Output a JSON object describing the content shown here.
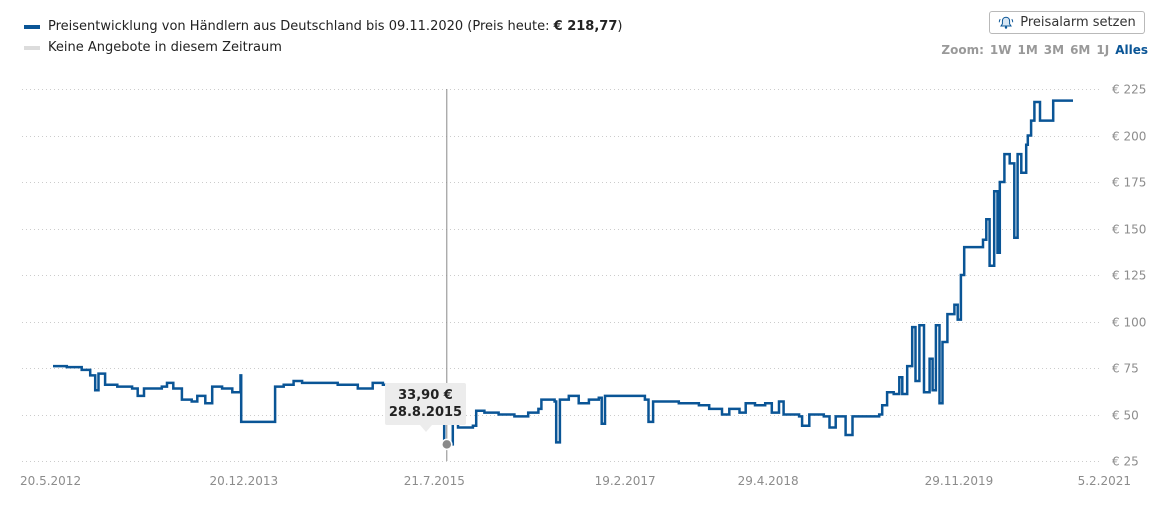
{
  "legend": {
    "series_prefix": "Preisentwicklung von Händlern aus Deutschland bis 09.11.2020 (Preis heute: ",
    "series_price": "€ 218,77",
    "series_suffix": ")",
    "no_offers": "Keine Angebote in diesem Zeitraum"
  },
  "alarm_button": {
    "label": "Preisalarm setzen",
    "icon": "bell-icon"
  },
  "zoom": {
    "label": "Zoom:",
    "options": [
      "1W",
      "1M",
      "3M",
      "6M",
      "1J",
      "Alles"
    ],
    "active": "Alles"
  },
  "tooltip": {
    "price": "33,90 €",
    "date": "28.8.2015"
  },
  "colors": {
    "series": "#0a5596",
    "grid": "#cccccc",
    "no_offer": "#dcdcdc",
    "crosshair": "#888888",
    "active_zoom": "#0a5596"
  },
  "chart_data": {
    "type": "line",
    "title": "",
    "xlabel": "",
    "ylabel": "",
    "y_ticks": [
      "€ 25",
      "€ 50",
      "€ 75",
      "€ 100",
      "€ 125",
      "€ 150",
      "€ 175",
      "€ 200",
      "€ 225"
    ],
    "y_tick_values": [
      25,
      50,
      75,
      100,
      125,
      150,
      175,
      200,
      225
    ],
    "x_ticks": [
      "20.5.2012",
      "20.12.2013",
      "21.7.2015",
      "19.2.2017",
      "29.4.2018",
      "29.11.2019",
      "5.2.2021"
    ],
    "x_tick_values": [
      "2012-05-20",
      "2013-12-20",
      "2015-07-21",
      "2017-02-19",
      "2018-04-29",
      "2019-11-29",
      "2021-02-05"
    ],
    "ylim": [
      25,
      225
    ],
    "grid": true,
    "legend_position": "top-left",
    "highlight": {
      "date": "2015-08-28",
      "value": 33.9
    },
    "series": [
      {
        "name": "Preisentwicklung von Händlern aus Deutschland bis 09.11.2020",
        "points": [
          [
            "2012-05-20",
            76
          ],
          [
            "2012-07-01",
            75.5
          ],
          [
            "2012-08-15",
            74
          ],
          [
            "2012-09-10",
            71
          ],
          [
            "2012-09-25",
            63
          ],
          [
            "2012-10-05",
            72
          ],
          [
            "2012-10-25",
            66
          ],
          [
            "2012-12-01",
            65
          ],
          [
            "2013-01-15",
            64
          ],
          [
            "2013-02-01",
            60
          ],
          [
            "2013-02-20",
            64
          ],
          [
            "2013-03-20",
            64
          ],
          [
            "2013-04-15",
            65
          ],
          [
            "2013-05-01",
            67
          ],
          [
            "2013-05-20",
            64
          ],
          [
            "2013-06-15",
            58
          ],
          [
            "2013-07-15",
            57
          ],
          [
            "2013-08-01",
            60
          ],
          [
            "2013-08-25",
            56
          ],
          [
            "2013-09-15",
            65
          ],
          [
            "2013-10-15",
            64
          ],
          [
            "2013-11-15",
            62
          ],
          [
            "2013-12-10",
            71
          ],
          [
            "2013-12-12",
            46
          ],
          [
            "2014-02-01",
            46
          ],
          [
            "2014-03-20",
            46
          ],
          [
            "2014-03-25",
            65
          ],
          [
            "2014-04-20",
            66
          ],
          [
            "2014-05-20",
            68
          ],
          [
            "2014-06-15",
            67
          ],
          [
            "2014-08-01",
            67
          ],
          [
            "2014-10-01",
            66
          ],
          [
            "2014-12-01",
            64
          ],
          [
            "2015-01-15",
            67
          ],
          [
            "2015-02-15",
            66
          ],
          [
            "2015-03-15",
            62
          ],
          [
            "2015-03-20",
            57
          ],
          [
            "2015-04-10",
            63
          ],
          [
            "2015-05-20",
            63
          ],
          [
            "2015-06-15",
            54
          ],
          [
            "2015-07-10",
            51
          ],
          [
            "2015-08-20",
            36
          ],
          [
            "2015-08-28",
            33.9
          ],
          [
            "2015-09-15",
            50
          ],
          [
            "2015-10-01",
            43
          ],
          [
            "2015-11-15",
            44
          ],
          [
            "2015-11-25",
            52
          ],
          [
            "2015-12-20",
            51
          ],
          [
            "2016-02-01",
            50
          ],
          [
            "2016-03-20",
            49
          ],
          [
            "2016-05-01",
            51
          ],
          [
            "2016-06-01",
            53
          ],
          [
            "2016-06-10",
            58
          ],
          [
            "2016-07-20",
            57
          ],
          [
            "2016-07-25",
            35
          ],
          [
            "2016-08-05",
            58
          ],
          [
            "2016-09-01",
            60
          ],
          [
            "2016-10-01",
            56
          ],
          [
            "2016-11-01",
            58
          ],
          [
            "2016-12-01",
            59
          ],
          [
            "2016-12-10",
            45
          ],
          [
            "2016-12-20",
            60
          ],
          [
            "2017-02-01",
            60
          ],
          [
            "2017-03-15",
            60
          ],
          [
            "2017-04-20",
            58
          ],
          [
            "2017-05-01",
            46
          ],
          [
            "2017-05-15",
            57
          ],
          [
            "2017-06-15",
            57
          ],
          [
            "2017-08-01",
            56
          ],
          [
            "2017-10-01",
            55
          ],
          [
            "2017-11-01",
            53
          ],
          [
            "2017-12-01",
            53
          ],
          [
            "2017-12-10",
            50
          ],
          [
            "2018-01-01",
            53
          ],
          [
            "2018-02-01",
            51
          ],
          [
            "2018-02-20",
            56
          ],
          [
            "2018-03-20",
            55
          ],
          [
            "2018-04-20",
            56
          ],
          [
            "2018-05-10",
            51
          ],
          [
            "2018-06-01",
            57
          ],
          [
            "2018-06-15",
            50
          ],
          [
            "2018-08-01",
            49
          ],
          [
            "2018-08-10",
            44
          ],
          [
            "2018-09-01",
            50
          ],
          [
            "2018-10-15",
            49
          ],
          [
            "2018-11-01",
            43
          ],
          [
            "2018-11-20",
            49
          ],
          [
            "2018-12-20",
            39
          ],
          [
            "2019-01-10",
            49
          ],
          [
            "2019-03-01",
            49
          ],
          [
            "2019-04-01",
            50
          ],
          [
            "2019-04-10",
            55
          ],
          [
            "2019-04-25",
            62
          ],
          [
            "2019-05-15",
            61
          ],
          [
            "2019-06-01",
            70
          ],
          [
            "2019-06-10",
            61
          ],
          [
            "2019-06-25",
            76
          ],
          [
            "2019-07-10",
            97
          ],
          [
            "2019-07-20",
            68
          ],
          [
            "2019-08-01",
            98
          ],
          [
            "2019-08-15",
            62
          ],
          [
            "2019-09-01",
            80
          ],
          [
            "2019-09-10",
            63
          ],
          [
            "2019-09-20",
            98
          ],
          [
            "2019-10-01",
            56
          ],
          [
            "2019-10-10",
            89
          ],
          [
            "2019-10-25",
            104
          ],
          [
            "2019-11-15",
            109
          ],
          [
            "2019-11-25",
            101
          ],
          [
            "2019-12-05",
            125
          ],
          [
            "2019-12-15",
            140
          ],
          [
            "2020-01-15",
            140
          ],
          [
            "2020-02-10",
            144
          ],
          [
            "2020-02-20",
            155
          ],
          [
            "2020-03-01",
            130
          ],
          [
            "2020-03-15",
            170
          ],
          [
            "2020-03-25",
            137
          ],
          [
            "2020-04-01",
            175
          ],
          [
            "2020-04-15",
            190
          ],
          [
            "2020-05-01",
            185
          ],
          [
            "2020-05-15",
            145
          ],
          [
            "2020-05-25",
            190
          ],
          [
            "2020-06-05",
            180
          ],
          [
            "2020-06-20",
            195
          ],
          [
            "2020-06-25",
            200
          ],
          [
            "2020-07-05",
            208
          ],
          [
            "2020-07-15",
            218
          ],
          [
            "2020-08-01",
            208
          ],
          [
            "2020-09-01",
            208
          ],
          [
            "2020-09-10",
            218.77
          ],
          [
            "2020-11-09",
            218.77
          ]
        ]
      }
    ]
  }
}
